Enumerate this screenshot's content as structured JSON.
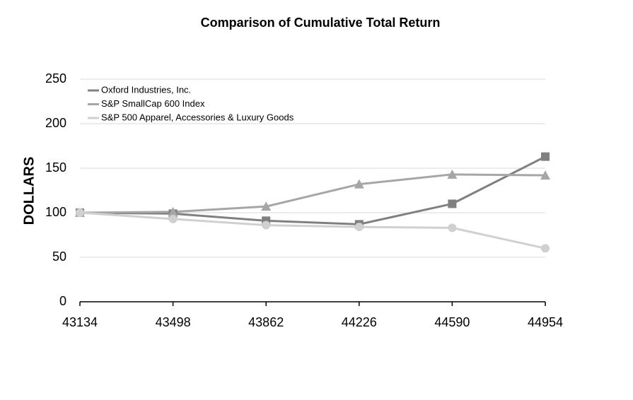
{
  "chart_data": {
    "type": "line",
    "title": "Comparison of Cumulative Total Return",
    "y_label": "DOLLARS",
    "x": [
      43134,
      43498,
      43862,
      44226,
      44590,
      44954
    ],
    "xlim": [
      43134,
      44954
    ],
    "xticks": [
      43134,
      43498,
      43862,
      44226,
      44590,
      44954
    ],
    "ylim": [
      0,
      250
    ],
    "yticks": [
      0,
      50,
      100,
      150,
      200,
      250
    ],
    "grid": true,
    "legend": "top-left",
    "series": [
      {
        "name": "Oxford Industries, Inc.",
        "color": "#808080",
        "marker": "square",
        "values": [
          100,
          99,
          91,
          87,
          110,
          163
        ]
      },
      {
        "name": "S&P SmallCap 600 Index",
        "color": "#a6a6a6",
        "marker": "triangle",
        "values": [
          100,
          101,
          107,
          132,
          143,
          142
        ]
      },
      {
        "name": "S&P 500 Apparel, Accessories & Luxury Goods",
        "color": "#d0d0d0",
        "marker": "circle",
        "values": [
          100,
          93,
          86,
          84,
          83,
          60
        ]
      }
    ]
  }
}
